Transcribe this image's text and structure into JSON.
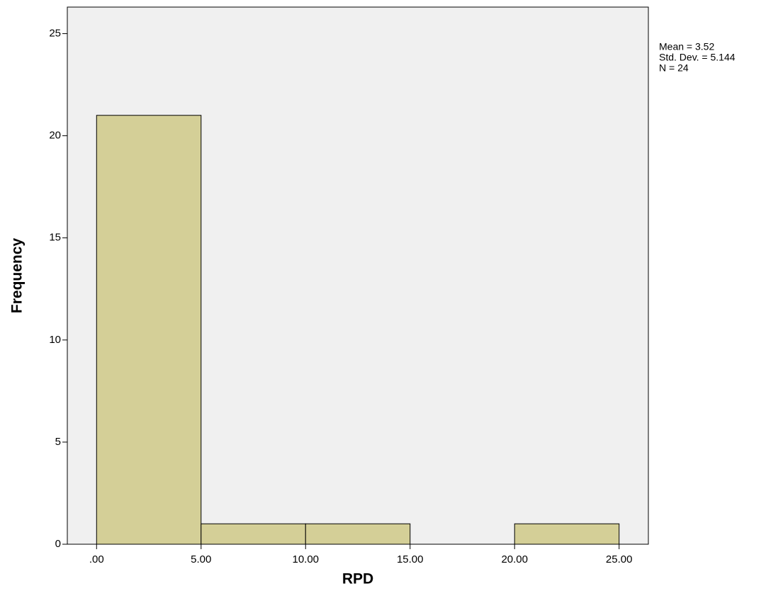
{
  "chart_data": {
    "type": "histogram",
    "x_label": "RPD",
    "y_label": "Frequency",
    "bins": [
      0,
      5,
      10,
      15,
      20,
      25
    ],
    "counts": [
      21,
      1,
      1,
      0,
      1
    ],
    "color": "#d4cf97",
    "xlim": [
      -1.4,
      26.4
    ],
    "xticks": [
      {
        "value": 0,
        "label": ".00"
      },
      {
        "value": 5,
        "label": "5.00"
      },
      {
        "value": 10,
        "label": "10.00"
      },
      {
        "value": 15,
        "label": "15.00"
      },
      {
        "value": 20,
        "label": "20.00"
      },
      {
        "value": 25,
        "label": "25.00"
      }
    ],
    "ylim": [
      0,
      26.3
    ],
    "yticks": [
      0,
      5,
      10,
      15,
      20,
      25
    ],
    "annotations": [
      "Mean = 3.52",
      "Std. Dev. = 5.144",
      "N = 24"
    ]
  }
}
